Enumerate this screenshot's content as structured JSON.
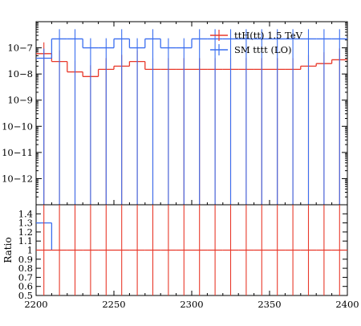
{
  "chart_data": {
    "type": "line",
    "x_range": [
      2200,
      2400
    ],
    "bin_width": 10,
    "x_ticks": [
      2200,
      2250,
      2300,
      2350,
      2400
    ],
    "x_tick_labels": [
      "2200",
      "2250",
      "2300",
      "2350",
      "2400"
    ],
    "upper_panel": {
      "yscale": "log",
      "ylim": [
        1e-13,
        1e-06
      ],
      "y_tick_labels": [
        "10−7",
        "10−8",
        "10−9",
        "10−10",
        "10−11",
        "10−12"
      ],
      "series": [
        {
          "name": "ttH(tt) 1.5 TeV",
          "color": "#e8382a",
          "values": [
            6e-08,
            3e-08,
            1.2e-08,
            8e-09,
            1.5e-08,
            2e-08,
            3e-08,
            1.5e-08,
            1.5e-08,
            1.5e-08,
            1.5e-08,
            1.5e-08,
            1.5e-08,
            1.5e-08,
            1.5e-08,
            1.5e-08,
            1.5e-08,
            2e-08,
            2.5e-08,
            3.5e-08
          ]
        },
        {
          "name": "SM tttt (LO)",
          "color": "#3a6ef0",
          "values": [
            4e-08,
            2.2e-07,
            2.2e-07,
            1e-07,
            1e-07,
            2.2e-07,
            1e-07,
            2.2e-07,
            1e-07,
            1e-07,
            2.2e-07,
            2.2e-07,
            2.2e-07,
            2.2e-07,
            2.2e-07,
            2.2e-07,
            2.2e-07,
            2.2e-07,
            2.2e-07,
            2.2e-07
          ]
        }
      ],
      "legend": [
        "ttH(tt) 1.5 TeV",
        "SM tttt (LO)"
      ],
      "legend_position": "top-right"
    },
    "lower_panel": {
      "ylabel": "Ratio",
      "ylim": [
        0.5,
        1.5
      ],
      "y_tick_labels": [
        "1.4",
        "1.3",
        "1.2",
        "1.1",
        "1",
        "0.9",
        "0.8",
        "0.7",
        "0.6",
        "0.5"
      ],
      "reference_line": 1.0,
      "ratio_values": [
        1.3,
        1,
        1,
        1,
        1,
        1,
        1,
        1,
        1,
        1,
        1,
        1,
        1,
        1,
        1,
        1,
        1,
        1,
        1,
        1
      ]
    },
    "grid": false
  }
}
